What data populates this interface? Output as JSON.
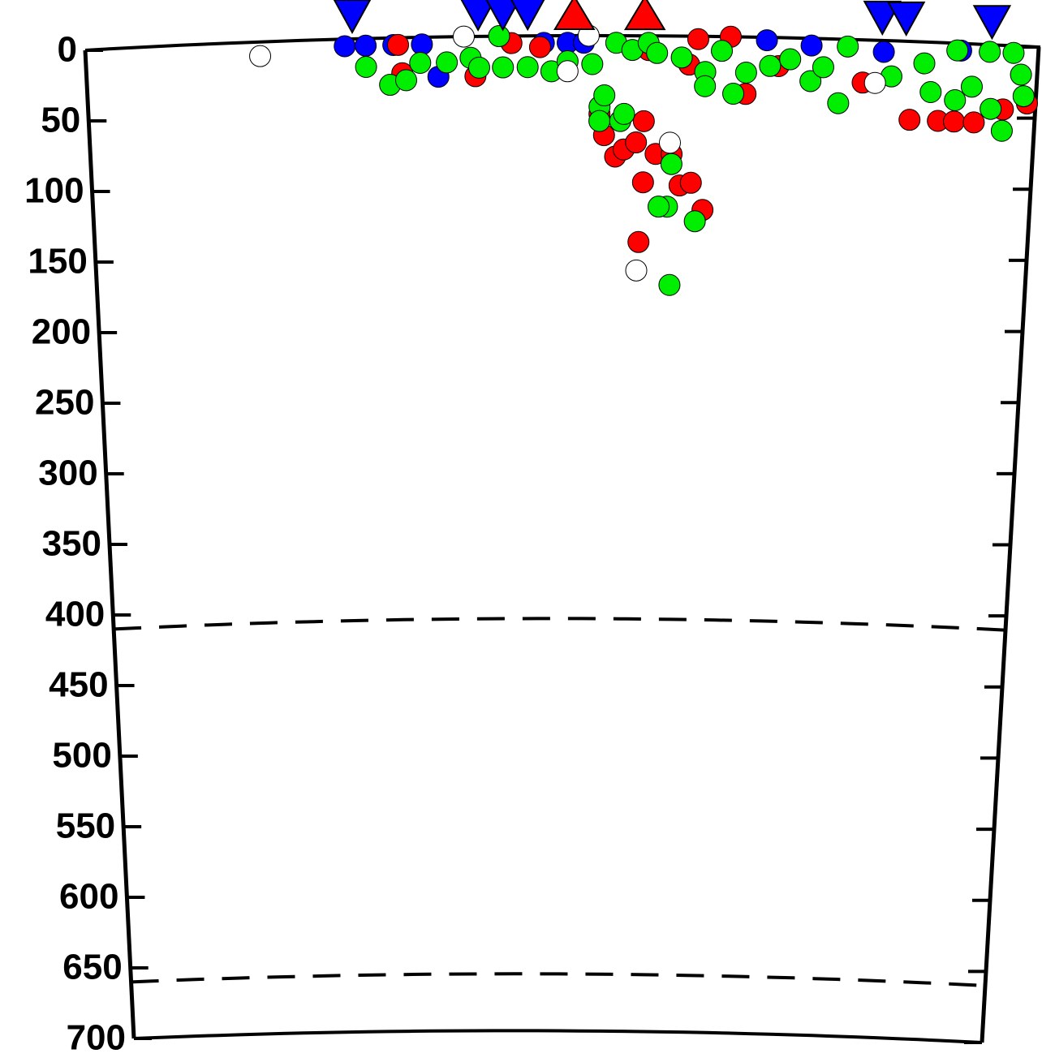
{
  "chart_data": {
    "type": "scatter",
    "ylim": [
      0,
      700
    ],
    "yticks": [
      0,
      50,
      100,
      150,
      200,
      250,
      300,
      350,
      400,
      450,
      500,
      550,
      600,
      650,
      700
    ],
    "xlim": [
      0,
      1
    ],
    "y_inverted": true,
    "dashed_lines": [
      410,
      660
    ],
    "series": [
      {
        "name": "blue",
        "color": "#0000ff",
        "x": [
          0.272,
          0.294,
          0.323,
          0.353,
          0.37,
          0.481,
          0.506,
          0.523,
          0.715,
          0.762,
          0.838,
          0.919
        ],
        "values": [
          5,
          5,
          5,
          5,
          28,
          5,
          5,
          5,
          2,
          5,
          8,
          5
        ]
      },
      {
        "name": "red",
        "color": "#ff0000",
        "x": [
          0.328,
          0.332,
          0.409,
          0.447,
          0.477,
          0.54,
          0.545,
          0.557,
          0.566,
          0.579,
          0.587,
          0.587,
          0.583,
          0.6,
          0.617,
          0.626,
          0.638,
          0.651,
          0.643,
          0.677,
          0.694,
          0.817,
          0.868,
          0.898,
          0.915,
          0.936,
          0.966,
          0.991,
          0.591,
          0.634,
          0.728
        ],
        "values": [
          5,
          25,
          28,
          5,
          8,
          55,
          70,
          85,
          80,
          75,
          60,
          103,
          145,
          83,
          83,
          105,
          103,
          122,
          2,
          0,
          40,
          30,
          55,
          55,
          55,
          55,
          45,
          40,
          10,
          20,
          20
        ]
      },
      {
        "name": "green",
        "color": "#00ee00",
        "x": [
          0.294,
          0.319,
          0.336,
          0.351,
          0.379,
          0.404,
          0.413,
          0.434,
          0.438,
          0.464,
          0.489,
          0.506,
          0.532,
          0.54,
          0.545,
          0.54,
          0.562,
          0.566,
          0.557,
          0.574,
          0.591,
          0.6,
          0.617,
          0.613,
          0.604,
          0.643,
          0.617,
          0.626,
          0.651,
          0.668,
          0.681,
          0.694,
          0.719,
          0.74,
          0.762,
          0.775,
          0.792,
          0.8,
          0.847,
          0.881,
          0.889,
          0.915,
          0.932,
          0.949,
          0.953,
          0.966,
          0.974,
          0.983,
          0.987,
          0.915,
          0.651
        ],
        "values": [
          20,
          33,
          30,
          18,
          18,
          15,
          22,
          0,
          22,
          22,
          25,
          18,
          20,
          50,
          42,
          60,
          60,
          55,
          5,
          10,
          5,
          12,
          90,
          120,
          120,
          130,
          175,
          15,
          25,
          10,
          40,
          25,
          20,
          15,
          30,
          20,
          45,
          5,
          25,
          15,
          35,
          5,
          30,
          5,
          45,
          60,
          5,
          20,
          35,
          40,
          35
        ]
      },
      {
        "name": "open",
        "color": "#ffffff",
        "x": [
          0.183,
          0.397,
          0.506,
          0.528,
          0.615,
          0.581,
          0.83
        ],
        "values": [
          10,
          0,
          25,
          0,
          75,
          165,
          30
        ]
      }
    ],
    "stations": {
      "color": "#0000ff",
      "x": [
        0.28,
        0.412,
        0.438,
        0.464,
        0.836,
        0.861,
        0.951
      ]
    },
    "volcanoes": {
      "color": "#ff0000",
      "x": [
        0.513,
        0.587
      ]
    }
  }
}
